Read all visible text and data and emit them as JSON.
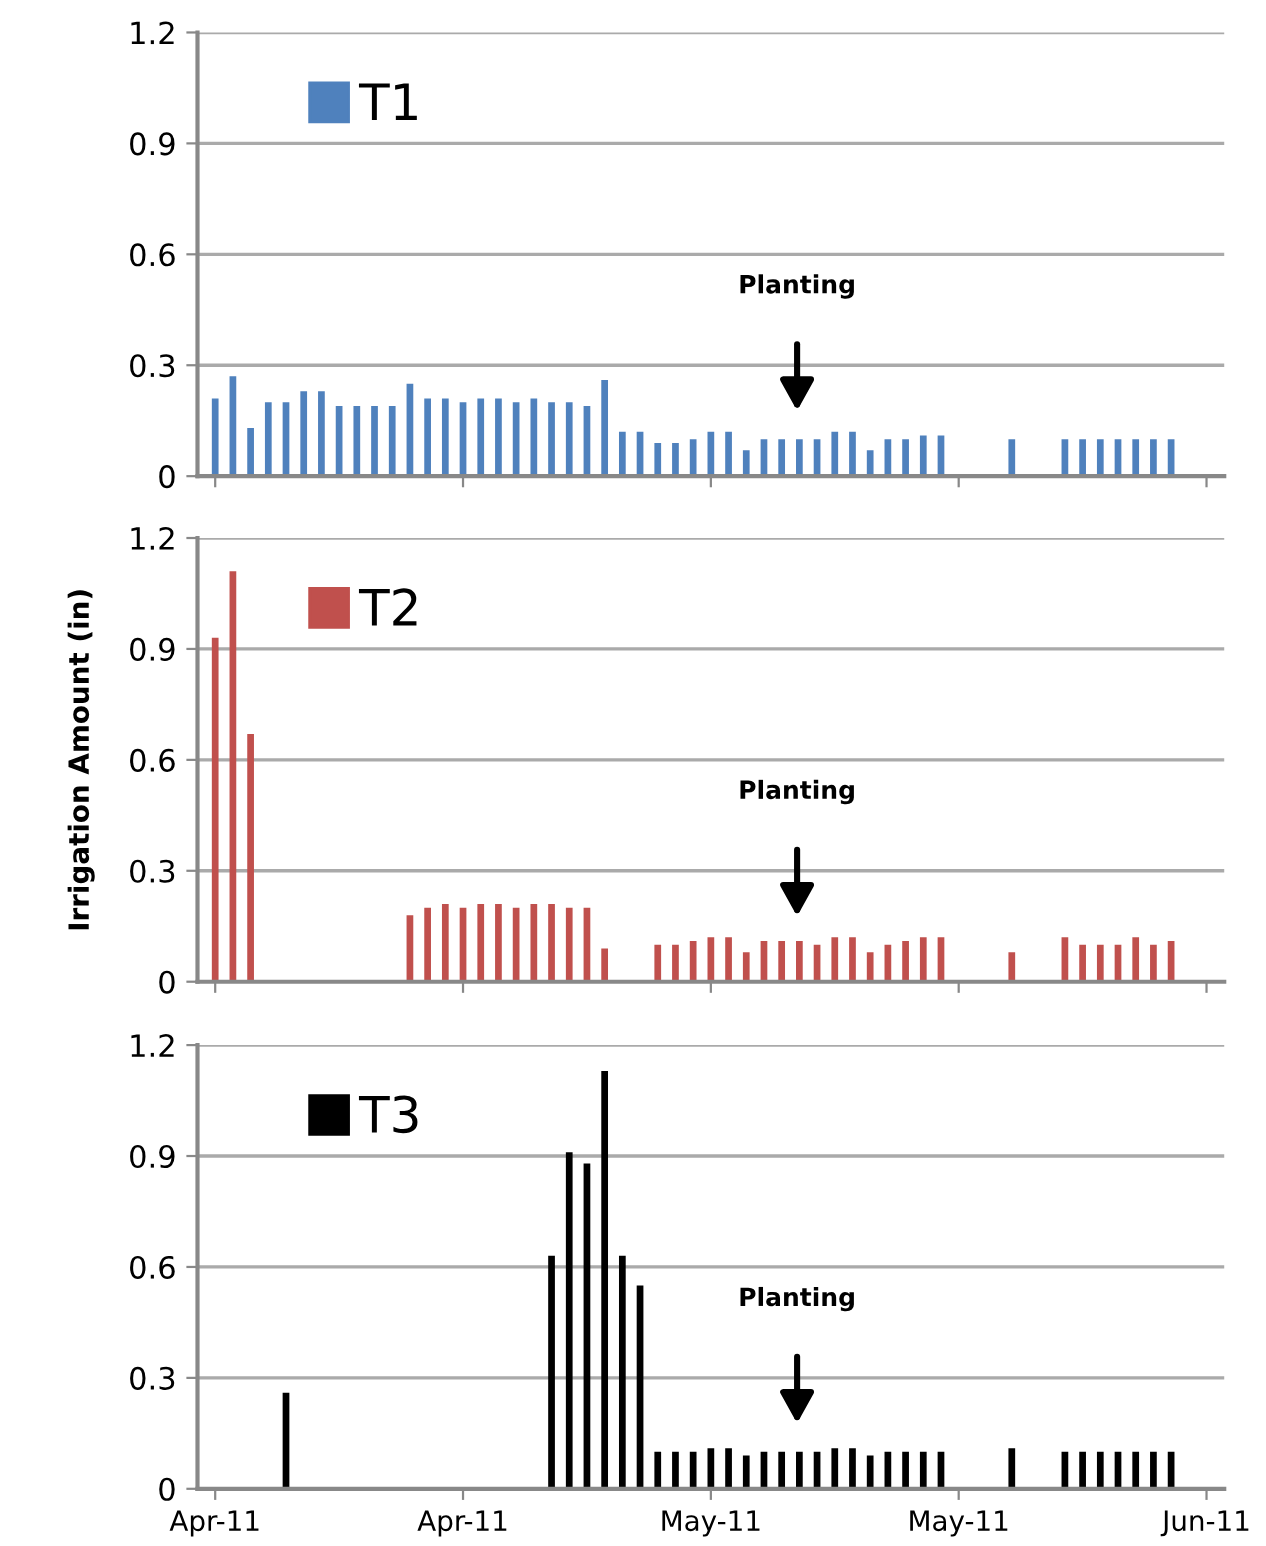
{
  "chart_data": [
    {
      "type": "bar",
      "series": [
        {
          "name": "T1",
          "color": "#4f81bd",
          "x": [
            "2011-04-06",
            "2011-04-07",
            "2011-04-08",
            "2011-04-09",
            "2011-04-10",
            "2011-04-11",
            "2011-04-12",
            "2011-04-13",
            "2011-04-14",
            "2011-04-15",
            "2011-04-16",
            "2011-04-17",
            "2011-04-18",
            "2011-04-19",
            "2011-04-20",
            "2011-04-21",
            "2011-04-22",
            "2011-04-23",
            "2011-04-24",
            "2011-04-25",
            "2011-04-26",
            "2011-04-27",
            "2011-04-28",
            "2011-04-29",
            "2011-04-30",
            "2011-05-01",
            "2011-05-02",
            "2011-05-03",
            "2011-05-04",
            "2011-05-05",
            "2011-05-06",
            "2011-05-07",
            "2011-05-08",
            "2011-05-09",
            "2011-05-10",
            "2011-05-11",
            "2011-05-12",
            "2011-05-13",
            "2011-05-14",
            "2011-05-15",
            "2011-05-16",
            "2011-05-17",
            "2011-05-21",
            "2011-05-24",
            "2011-05-25",
            "2011-05-26",
            "2011-05-27",
            "2011-05-28",
            "2011-05-29",
            "2011-05-30"
          ],
          "values": [
            0.21,
            0.27,
            0.13,
            0.2,
            0.2,
            0.23,
            0.23,
            0.19,
            0.19,
            0.19,
            0.19,
            0.25,
            0.21,
            0.21,
            0.2,
            0.21,
            0.21,
            0.2,
            0.21,
            0.2,
            0.2,
            0.19,
            0.26,
            0.12,
            0.12,
            0.09,
            0.09,
            0.1,
            0.12,
            0.12,
            0.07,
            0.1,
            0.1,
            0.1,
            0.1,
            0.12,
            0.12,
            0.07,
            0.1,
            0.1,
            0.11,
            0.11,
            0.1,
            0.1,
            0.1,
            0.1,
            0.1,
            0.1,
            0.1,
            0.1
          ]
        }
      ],
      "xlim": [
        "2011-04-05",
        "2011-06-02"
      ],
      "xticks": [
        {
          "value": "2011-04-06",
          "label": null
        },
        {
          "value": "2011-04-20",
          "label": null
        },
        {
          "value": "2011-05-04",
          "label": null
        },
        {
          "value": "2011-05-18",
          "label": null
        },
        {
          "value": "2011-06-01",
          "label": null
        }
      ],
      "ylim": [
        0,
        1.2
      ],
      "yticks": [
        0,
        0.3,
        0.6,
        0.9,
        1.2
      ],
      "grid": "y",
      "legend": "top left",
      "tick_labels": "y",
      "annotations": [
        "Planting"
      ]
    },
    {
      "type": "bar",
      "ylabel": "Irrigation Amount (in)",
      "series": [
        {
          "name": "T2",
          "color": "#c0504d",
          "x": [
            "2011-04-06",
            "2011-04-07",
            "2011-04-08",
            "2011-04-17",
            "2011-04-18",
            "2011-04-19",
            "2011-04-20",
            "2011-04-21",
            "2011-04-22",
            "2011-04-23",
            "2011-04-24",
            "2011-04-25",
            "2011-04-26",
            "2011-04-27",
            "2011-04-28",
            "2011-05-01",
            "2011-05-02",
            "2011-05-03",
            "2011-05-04",
            "2011-05-05",
            "2011-05-06",
            "2011-05-07",
            "2011-05-08",
            "2011-05-09",
            "2011-05-10",
            "2011-05-11",
            "2011-05-12",
            "2011-05-13",
            "2011-05-14",
            "2011-05-15",
            "2011-05-16",
            "2011-05-17",
            "2011-05-21",
            "2011-05-24",
            "2011-05-25",
            "2011-05-26",
            "2011-05-27",
            "2011-05-28",
            "2011-05-29",
            "2011-05-30"
          ],
          "values": [
            0.93,
            1.11,
            0.67,
            0.18,
            0.2,
            0.21,
            0.2,
            0.21,
            0.21,
            0.2,
            0.21,
            0.21,
            0.2,
            0.2,
            0.09,
            0.1,
            0.1,
            0.11,
            0.12,
            0.12,
            0.08,
            0.11,
            0.11,
            0.11,
            0.1,
            0.12,
            0.12,
            0.08,
            0.1,
            0.11,
            0.12,
            0.12,
            0.08,
            0.12,
            0.1,
            0.1,
            0.1,
            0.12,
            0.1,
            0.11
          ]
        }
      ],
      "xlim": [
        "2011-04-05",
        "2011-06-02"
      ],
      "xticks": [
        {
          "value": "2011-04-06",
          "label": null
        },
        {
          "value": "2011-04-20",
          "label": null
        },
        {
          "value": "2011-05-04",
          "label": null
        },
        {
          "value": "2011-05-18",
          "label": null
        },
        {
          "value": "2011-06-01",
          "label": null
        }
      ],
      "ylim": [
        0,
        1.2
      ],
      "yticks": [
        0,
        0.3,
        0.6,
        0.9,
        1.2
      ],
      "grid": "y",
      "legend": "top left",
      "tick_labels": "y",
      "annotations": [
        "Planting"
      ]
    },
    {
      "type": "bar",
      "series": [
        {
          "name": "T3",
          "color": "#000000",
          "x": [
            "2011-04-10",
            "2011-04-25",
            "2011-04-26",
            "2011-04-27",
            "2011-04-28",
            "2011-04-29",
            "2011-04-30",
            "2011-05-01",
            "2011-05-02",
            "2011-05-03",
            "2011-05-04",
            "2011-05-05",
            "2011-05-06",
            "2011-05-07",
            "2011-05-08",
            "2011-05-09",
            "2011-05-10",
            "2011-05-11",
            "2011-05-12",
            "2011-05-13",
            "2011-05-14",
            "2011-05-15",
            "2011-05-16",
            "2011-05-17",
            "2011-05-21",
            "2011-05-24",
            "2011-05-25",
            "2011-05-26",
            "2011-05-27",
            "2011-05-28",
            "2011-05-29",
            "2011-05-30"
          ],
          "values": [
            0.26,
            0.63,
            0.91,
            0.88,
            1.13,
            0.63,
            0.55,
            0.1,
            0.1,
            0.1,
            0.11,
            0.11,
            0.09,
            0.1,
            0.1,
            0.1,
            0.1,
            0.11,
            0.11,
            0.09,
            0.1,
            0.1,
            0.1,
            0.1,
            0.11,
            0.1,
            0.1,
            0.1,
            0.1,
            0.1,
            0.1,
            0.1
          ]
        }
      ],
      "xlim": [
        "2011-04-05",
        "2011-06-02"
      ],
      "xticks": [
        {
          "value": "2011-04-06",
          "label": "Apr-11"
        },
        {
          "value": "2011-04-20",
          "label": "Apr-11"
        },
        {
          "value": "2011-05-04",
          "label": "May-11"
        },
        {
          "value": "2011-05-18",
          "label": "May-11"
        },
        {
          "value": "2011-06-01",
          "label": "Jun-11"
        }
      ],
      "ylim": [
        0,
        1.2
      ],
      "yticks": [
        0,
        0.3,
        0.6,
        0.9,
        1.2
      ],
      "grid": "y",
      "legend": "top left",
      "annotations": [
        "Planting"
      ]
    }
  ]
}
